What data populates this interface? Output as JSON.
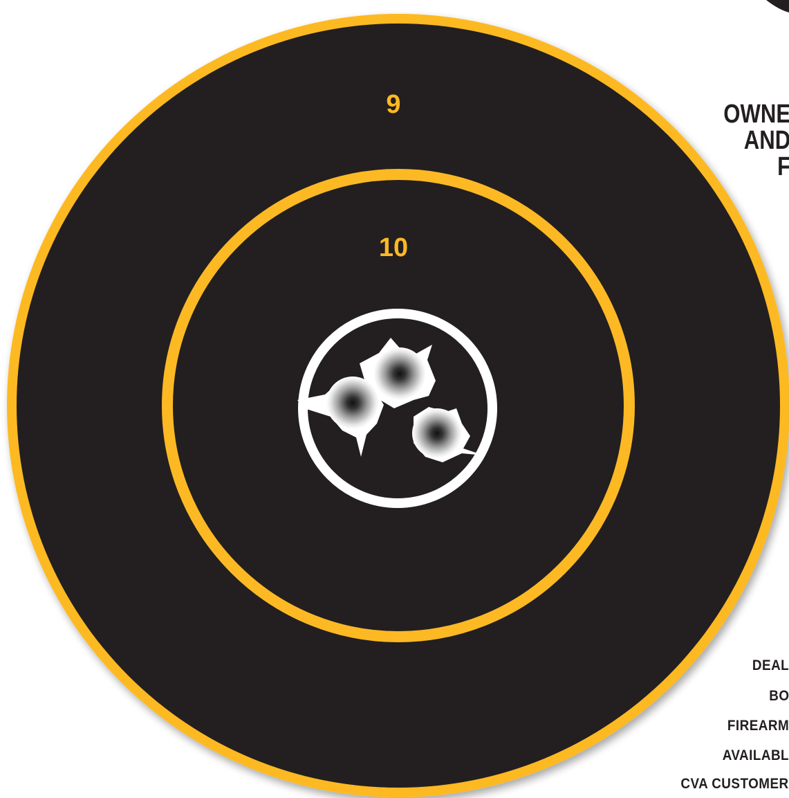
{
  "target": {
    "ring_labels": [
      "9",
      "10"
    ],
    "colors": {
      "background": "#ffffff",
      "target_black": "#231f20",
      "ring_yellow": "#fdb924",
      "inner_ring": "#ffffff",
      "text_dark": "#231f20"
    },
    "shot_count": 3
  },
  "heading_lines": [
    "OWNE",
    "AND",
    "F"
  ],
  "info_lines": [
    "DEAL",
    "BO",
    "FIREARM",
    "AVAILABL",
    "CVA CUSTOMER"
  ]
}
